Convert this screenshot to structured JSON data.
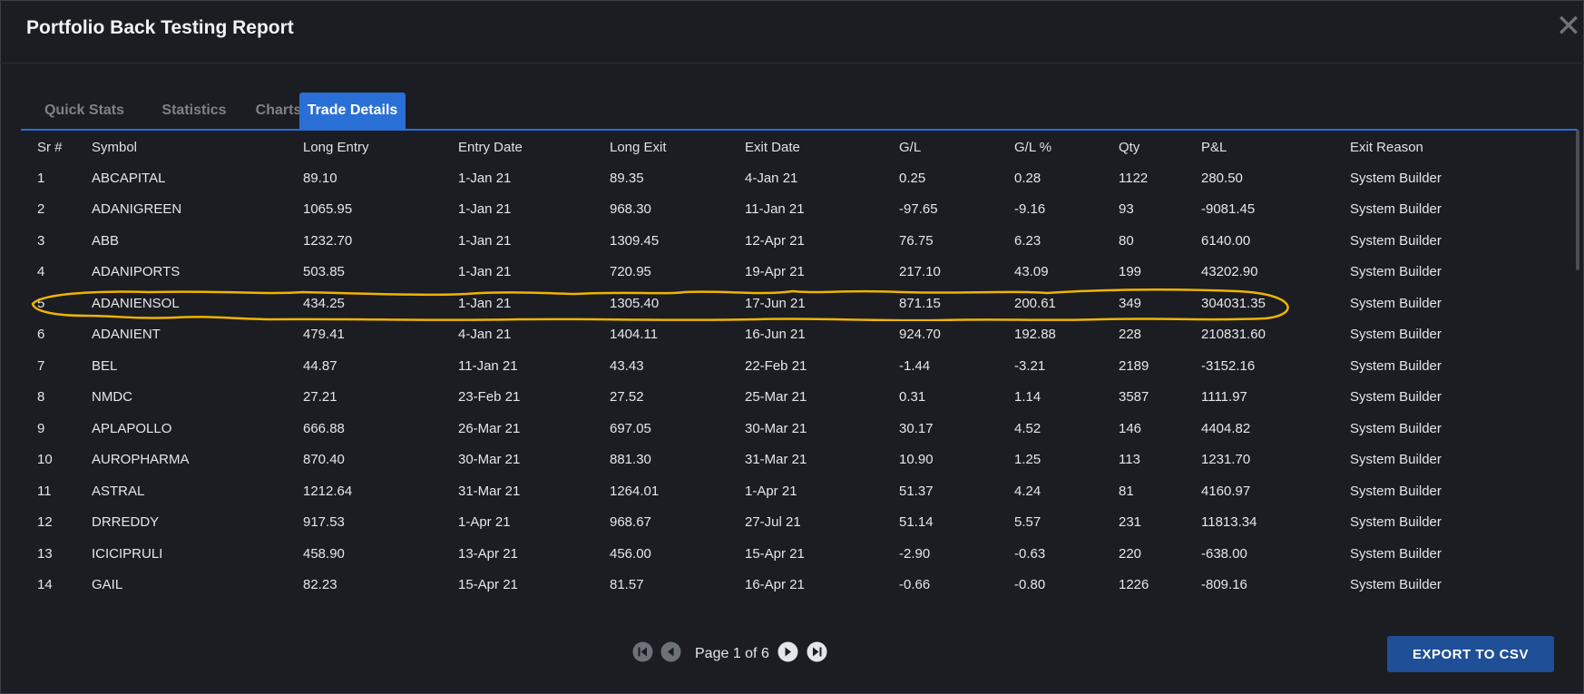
{
  "header": {
    "title": "Portfolio Back Testing Report",
    "close_glyph": "✕"
  },
  "tabs": [
    {
      "label": "Quick Stats",
      "active": false
    },
    {
      "label": "Statistics",
      "active": false
    },
    {
      "label": "Charts",
      "active": false
    },
    {
      "label": "Trade Details",
      "active": true
    }
  ],
  "table": {
    "columns": [
      "Sr #",
      "Symbol",
      "Long Entry",
      "Entry Date",
      "Long Exit",
      "Exit Date",
      "G/L",
      "G/L %",
      "Qty",
      "P&L",
      "Exit Reason"
    ],
    "rows": [
      [
        "1",
        "ABCAPITAL",
        "89.10",
        "1-Jan 21",
        "89.35",
        "4-Jan 21",
        "0.25",
        "0.28",
        "1122",
        "280.50",
        "System Builder"
      ],
      [
        "2",
        "ADANIGREEN",
        "1065.95",
        "1-Jan 21",
        "968.30",
        "11-Jan 21",
        "-97.65",
        "-9.16",
        "93",
        "-9081.45",
        "System Builder"
      ],
      [
        "3",
        "ABB",
        "1232.70",
        "1-Jan 21",
        "1309.45",
        "12-Apr 21",
        "76.75",
        "6.23",
        "80",
        "6140.00",
        "System Builder"
      ],
      [
        "4",
        "ADANIPORTS",
        "503.85",
        "1-Jan 21",
        "720.95",
        "19-Apr 21",
        "217.10",
        "43.09",
        "199",
        "43202.90",
        "System Builder"
      ],
      [
        "5",
        "ADANIENSOL",
        "434.25",
        "1-Jan 21",
        "1305.40",
        "17-Jun 21",
        "871.15",
        "200.61",
        "349",
        "304031.35",
        "System Builder"
      ],
      [
        "6",
        "ADANIENT",
        "479.41",
        "4-Jan 21",
        "1404.11",
        "16-Jun 21",
        "924.70",
        "192.88",
        "228",
        "210831.60",
        "System Builder"
      ],
      [
        "7",
        "BEL",
        "44.87",
        "11-Jan 21",
        "43.43",
        "22-Feb 21",
        "-1.44",
        "-3.21",
        "2189",
        "-3152.16",
        "System Builder"
      ],
      [
        "8",
        "NMDC",
        "27.21",
        "23-Feb 21",
        "27.52",
        "25-Mar 21",
        "0.31",
        "1.14",
        "3587",
        "1111.97",
        "System Builder"
      ],
      [
        "9",
        "APLAPOLLO",
        "666.88",
        "26-Mar 21",
        "697.05",
        "30-Mar 21",
        "30.17",
        "4.52",
        "146",
        "4404.82",
        "System Builder"
      ],
      [
        "10",
        "AUROPHARMA",
        "870.40",
        "30-Mar 21",
        "881.30",
        "31-Mar 21",
        "10.90",
        "1.25",
        "113",
        "1231.70",
        "System Builder"
      ],
      [
        "11",
        "ASTRAL",
        "1212.64",
        "31-Mar 21",
        "1264.01",
        "1-Apr 21",
        "51.37",
        "4.24",
        "81",
        "4160.97",
        "System Builder"
      ],
      [
        "12",
        "DRREDDY",
        "917.53",
        "1-Apr 21",
        "968.67",
        "27-Jul 21",
        "51.14",
        "5.57",
        "231",
        "11813.34",
        "System Builder"
      ],
      [
        "13",
        "ICICIPRULI",
        "458.90",
        "13-Apr 21",
        "456.00",
        "15-Apr 21",
        "-2.90",
        "-0.63",
        "220",
        "-638.00",
        "System Builder"
      ],
      [
        "14",
        "GAIL",
        "82.23",
        "15-Apr 21",
        "81.57",
        "16-Apr 21",
        "-0.66",
        "-0.80",
        "1226",
        "-809.16",
        "System Builder"
      ]
    ],
    "highlighted_row": 4
  },
  "pager": {
    "label": "Page 1 of 6",
    "current_page": 1,
    "total_pages": 6
  },
  "export": {
    "label": "EXPORT TO CSV"
  },
  "colors": {
    "background": "#1b1d22",
    "accent": "#2a6fd6",
    "export_button": "#1f4f96",
    "highlight_annotation": "#f0b400"
  },
  "icons": [
    "close-icon",
    "first-page-icon",
    "previous-page-icon",
    "next-page-icon",
    "last-page-icon"
  ]
}
